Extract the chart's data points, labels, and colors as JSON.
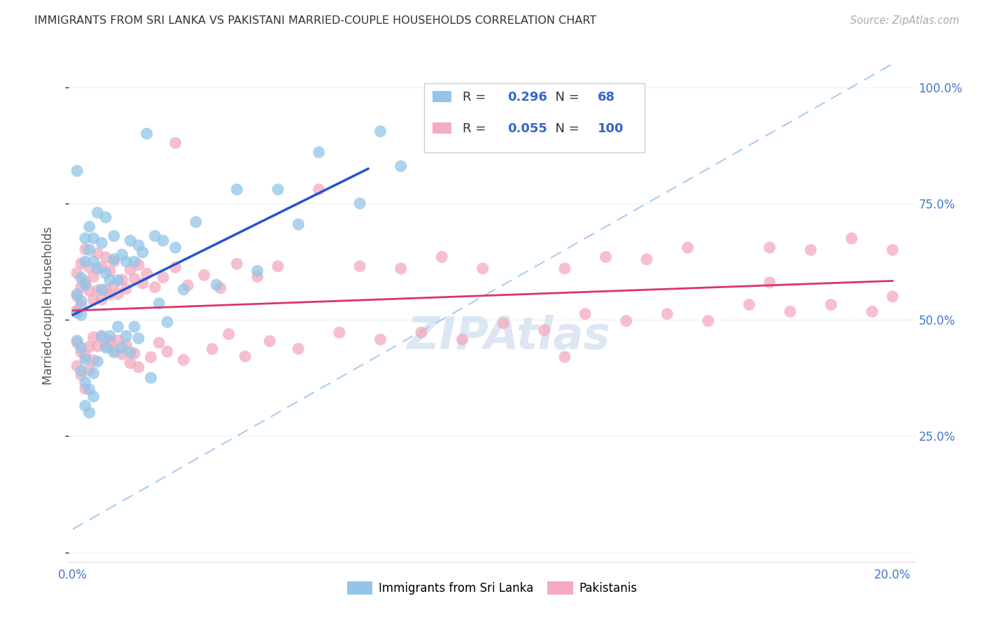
{
  "title": "IMMIGRANTS FROM SRI LANKA VS PAKISTANI MARRIED-COUPLE HOUSEHOLDS CORRELATION CHART",
  "source": "Source: ZipAtlas.com",
  "ylabel": "Married-couple Households",
  "legend_blue_R": "0.296",
  "legend_blue_N": "68",
  "legend_pink_R": "0.055",
  "legend_pink_N": "100",
  "blue_color": "#92C5E8",
  "pink_color": "#F4AABF",
  "trend_blue": "#2255CC",
  "trend_pink": "#DD3366",
  "trend_dashed_color": "#AACCEE",
  "watermark": "ZIPAtlas",
  "watermark_color": "#C5D8EE",
  "title_color": "#333333",
  "source_color": "#AAAAAA",
  "axis_label_color": "#4477CC",
  "ylabel_color": "#555555",
  "grid_color": "#DDDDDD",
  "legend_border_color": "#CCCCCC"
}
